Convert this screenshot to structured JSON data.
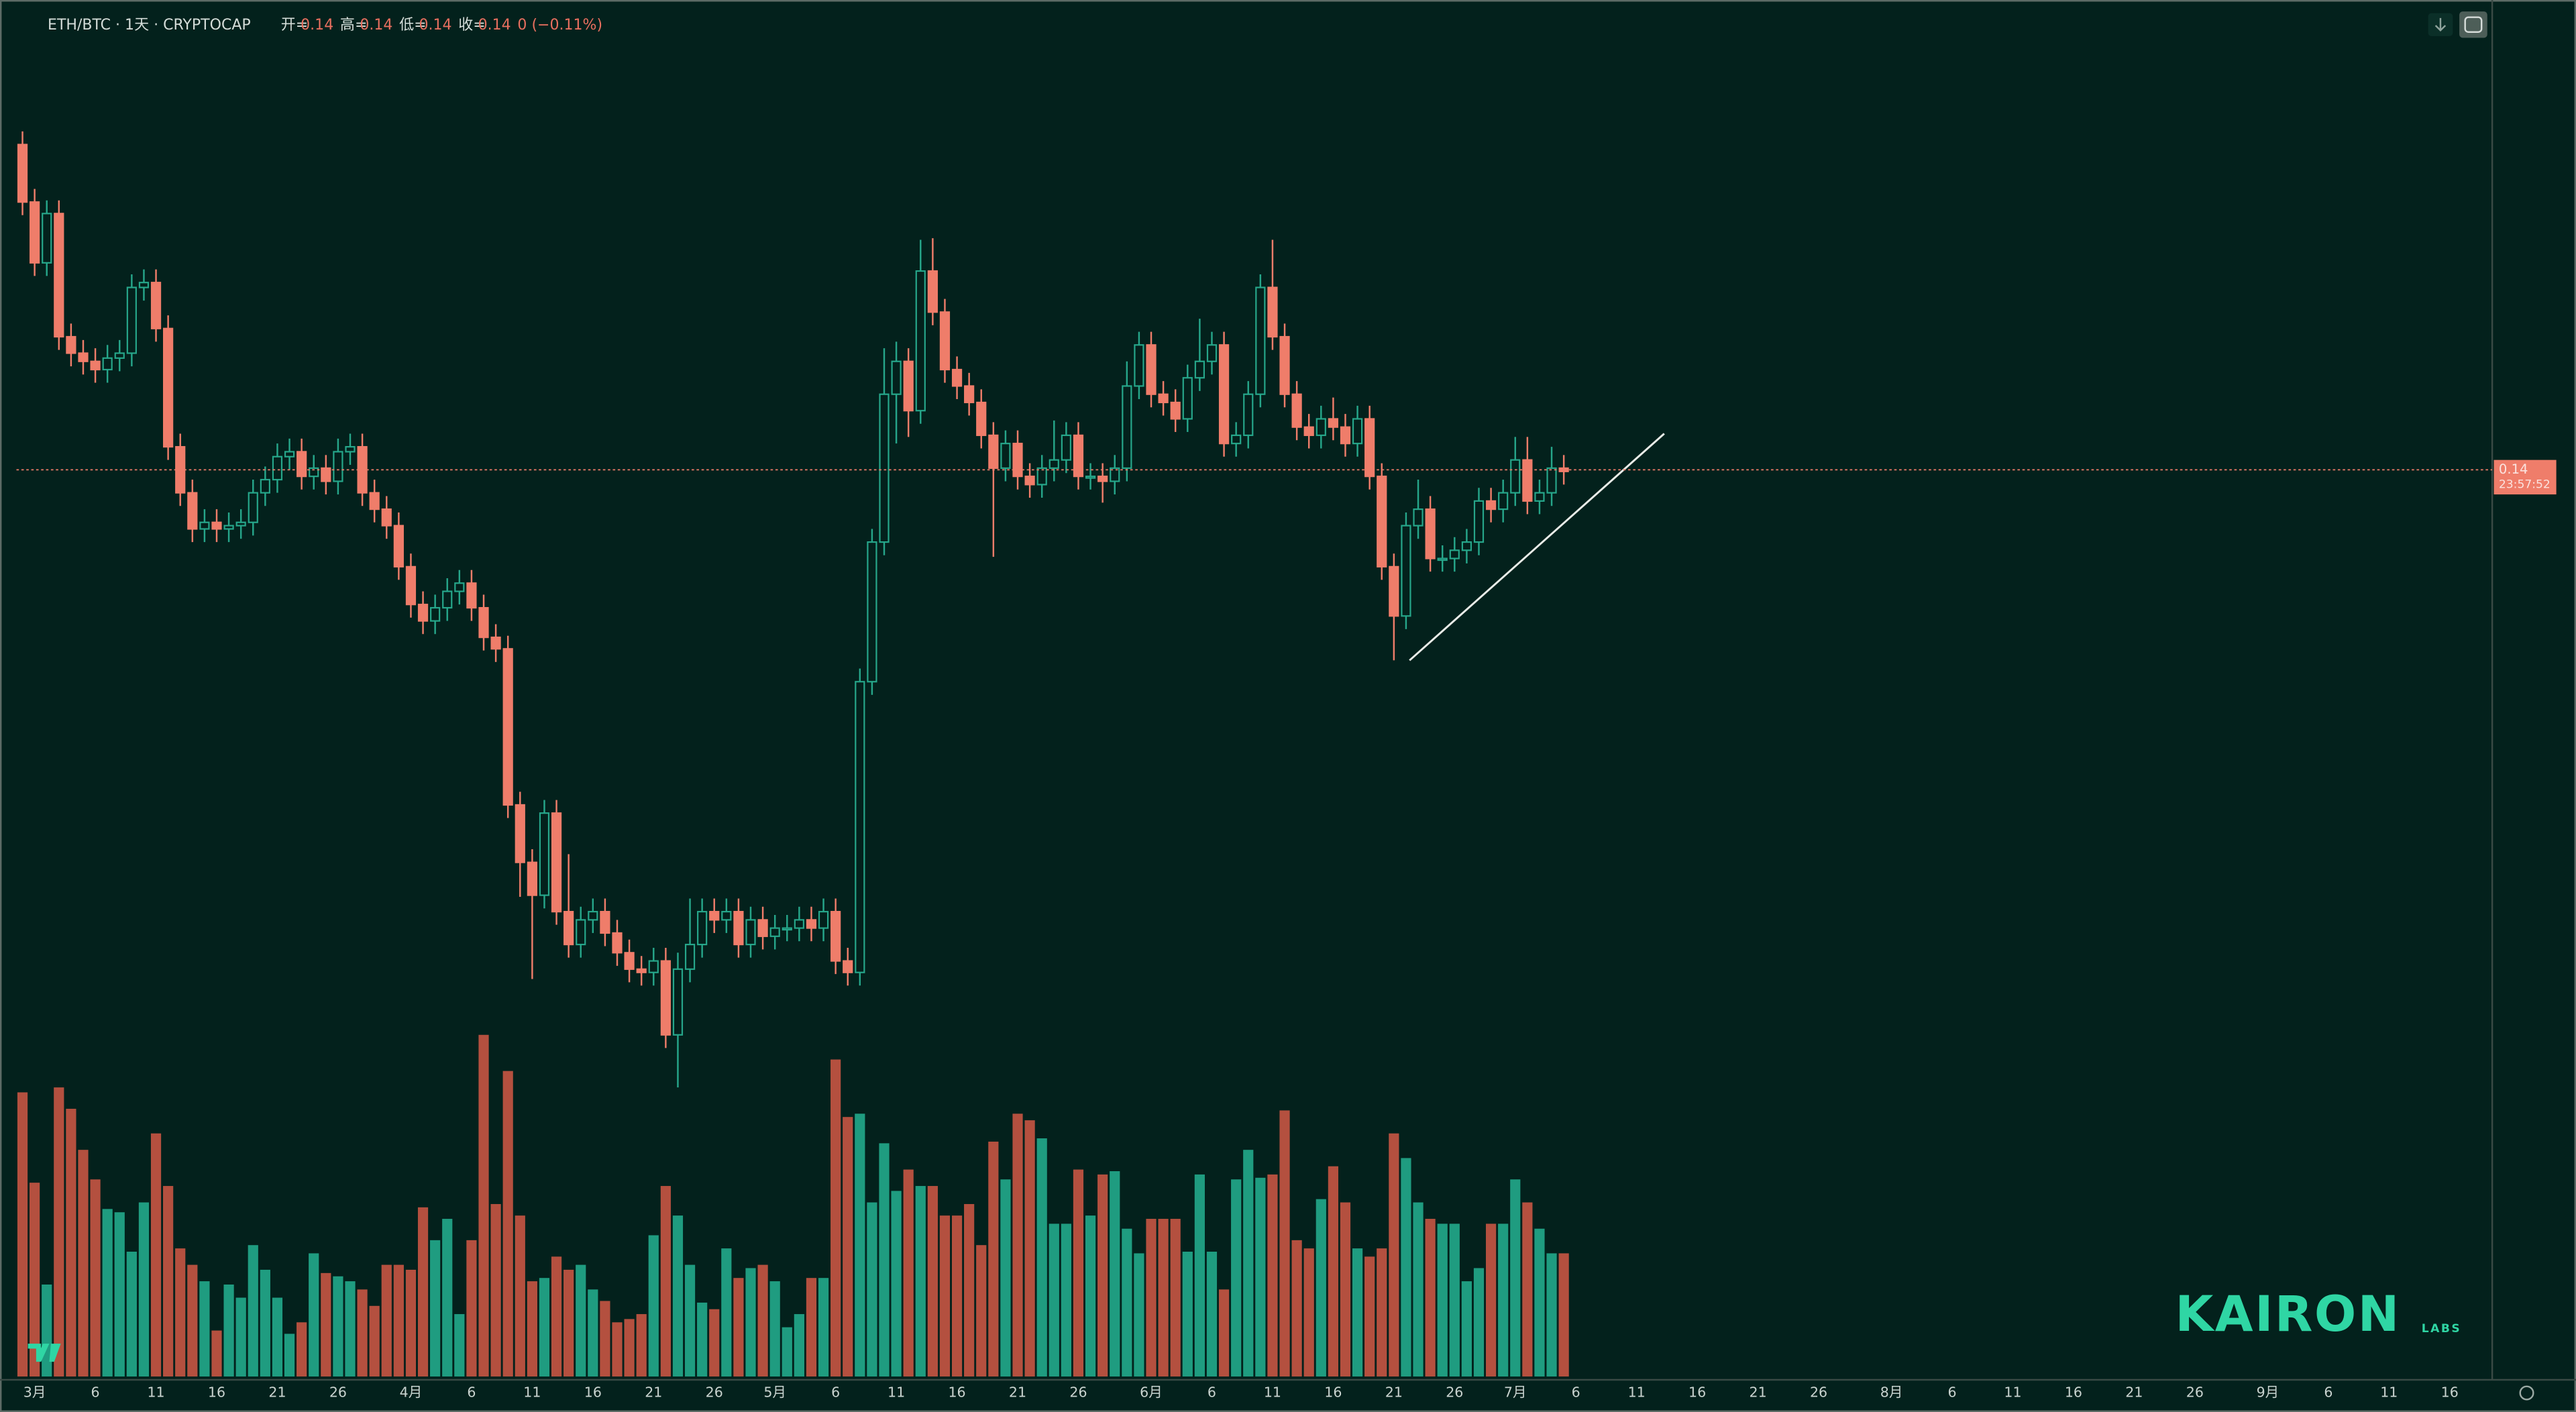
{
  "chart_data": {
    "type": "candlestick",
    "title": "ETH/BTC · 1天 · CRYPTOCAP",
    "ohlc_legend": [
      {
        "label": "开=",
        "value": 0.14
      },
      {
        "label": "高=",
        "value": 0.14
      },
      {
        "label": "低=",
        "value": 0.14
      },
      {
        "label": "收=",
        "value": 0.14
      }
    ],
    "change": "0 (−0.11%)",
    "price_label": {
      "value": 0.14,
      "label": "0.14"
    },
    "countdown": "23:57:52",
    "logo": "KAIRON",
    "logo_sub": "LABS",
    "up_color": "#26a68a",
    "down_color": "#ef7d6a",
    "volume_up_color": "#1f9c80",
    "volume_down_color": "#b4503f",
    "xlim": [
      -0.5,
      203.5
    ],
    "ylim": [
      0.0848,
      0.1681
    ],
    "volume_lim": [
      0,
      400
    ],
    "xticks": [
      {
        "value": 1,
        "label": "3月"
      },
      {
        "value": 6,
        "label": "6"
      },
      {
        "value": 11,
        "label": "11"
      },
      {
        "value": 16,
        "label": "16"
      },
      {
        "value": 21,
        "label": "21"
      },
      {
        "value": 26,
        "label": "26"
      },
      {
        "value": 32,
        "label": "4月"
      },
      {
        "value": 37,
        "label": "6"
      },
      {
        "value": 42,
        "label": "11"
      },
      {
        "value": 47,
        "label": "16"
      },
      {
        "value": 52,
        "label": "21"
      },
      {
        "value": 57,
        "label": "26"
      },
      {
        "value": 62,
        "label": "5月"
      },
      {
        "value": 67,
        "label": "6"
      },
      {
        "value": 72,
        "label": "11"
      },
      {
        "value": 77,
        "label": "16"
      },
      {
        "value": 82,
        "label": "21"
      },
      {
        "value": 87,
        "label": "26"
      },
      {
        "value": 93,
        "label": "6月"
      },
      {
        "value": 98,
        "label": "6"
      },
      {
        "value": 103,
        "label": "11"
      },
      {
        "value": 108,
        "label": "16"
      },
      {
        "value": 113,
        "label": "21"
      },
      {
        "value": 118,
        "label": "26"
      },
      {
        "value": 123,
        "label": "7月"
      },
      {
        "value": 128,
        "label": "6"
      },
      {
        "value": 133,
        "label": "11"
      },
      {
        "value": 138,
        "label": "16"
      },
      {
        "value": 143,
        "label": "21"
      },
      {
        "value": 148,
        "label": "26"
      },
      {
        "value": 154,
        "label": "8月"
      },
      {
        "value": 159,
        "label": "6"
      },
      {
        "value": 164,
        "label": "11"
      },
      {
        "value": 169,
        "label": "16"
      },
      {
        "value": 174,
        "label": "21"
      },
      {
        "value": 179,
        "label": "26"
      },
      {
        "value": 185,
        "label": "9月"
      },
      {
        "value": 190,
        "label": "6"
      },
      {
        "value": 195,
        "label": "11"
      },
      {
        "value": 200,
        "label": "16"
      }
    ],
    "grid": false,
    "open": [
      0.1598,
      0.1563,
      0.1526,
      0.1556,
      0.1481,
      0.1471,
      0.1466,
      0.1461,
      0.1468,
      0.1471,
      0.1511,
      0.1514,
      0.1486,
      0.1414,
      0.1386,
      0.1364,
      0.1368,
      0.1364,
      0.1366,
      0.1368,
      0.1386,
      0.1394,
      0.1408,
      0.1411,
      0.1396,
      0.1401,
      0.1393,
      0.1411,
      0.1414,
      0.1386,
      0.1376,
      0.1366,
      0.1341,
      0.1318,
      0.1308,
      0.1316,
      0.1326,
      0.1331,
      0.1316,
      0.1298,
      0.1291,
      0.1196,
      0.1161,
      0.1141,
      0.1191,
      0.1131,
      0.1111,
      0.1126,
      0.1131,
      0.1118,
      0.1106,
      0.1096,
      0.1094,
      0.1101,
      0.1056,
      0.1096,
      0.1111,
      0.1131,
      0.1126,
      0.1131,
      0.1111,
      0.1126,
      0.1116,
      0.1121,
      0.1121,
      0.1126,
      0.1121,
      0.1131,
      0.1101,
      0.1094,
      0.1271,
      0.1356,
      0.1446,
      0.1466,
      0.1436,
      0.1521,
      0.1496,
      0.1461,
      0.1451,
      0.1441,
      0.1421,
      0.1401,
      0.1416,
      0.1396,
      0.1391,
      0.1401,
      0.1406,
      0.1421,
      0.1396,
      0.1396,
      0.1393,
      0.1401,
      0.1451,
      0.1476,
      0.1446,
      0.1441,
      0.1431,
      0.1456,
      0.1466,
      0.1476,
      0.1416,
      0.1421,
      0.1446,
      0.1511,
      0.1481,
      0.1446,
      0.1426,
      0.1421,
      0.1431,
      0.1426,
      0.1416,
      0.1431,
      0.1396,
      0.1341,
      0.1311,
      0.1366,
      0.1376,
      0.1346,
      0.1346,
      0.1351,
      0.1356,
      0.1381,
      0.1376,
      0.1386,
      0.1406,
      0.1381,
      0.1386,
      0.1401
    ],
    "high": [
      0.1606,
      0.1571,
      0.1564,
      0.1564,
      0.1489,
      0.1479,
      0.1474,
      0.1476,
      0.1479,
      0.1519,
      0.1522,
      0.1522,
      0.1494,
      0.1422,
      0.1394,
      0.1376,
      0.1376,
      0.1374,
      0.1376,
      0.1394,
      0.1402,
      0.1416,
      0.1419,
      0.1419,
      0.1409,
      0.1409,
      0.1419,
      0.1422,
      0.1422,
      0.1394,
      0.1384,
      0.1374,
      0.1349,
      0.1326,
      0.1324,
      0.1334,
      0.1339,
      0.1339,
      0.1324,
      0.1306,
      0.1299,
      0.1204,
      0.1169,
      0.1199,
      0.1199,
      0.1166,
      0.1134,
      0.1139,
      0.1139,
      0.1126,
      0.1114,
      0.1104,
      0.1109,
      0.1109,
      0.1106,
      0.1139,
      0.1139,
      0.1139,
      0.1139,
      0.1139,
      0.1134,
      0.1134,
      0.1129,
      0.1129,
      0.1134,
      0.1134,
      0.1139,
      0.1139,
      0.1109,
      0.1279,
      0.1364,
      0.1474,
      0.1478,
      0.1474,
      0.154,
      0.1541,
      0.1504,
      0.1469,
      0.1459,
      0.1449,
      0.1429,
      0.1424,
      0.1424,
      0.1404,
      0.1409,
      0.143,
      0.1429,
      0.1429,
      0.1404,
      0.1404,
      0.1409,
      0.1466,
      0.1484,
      0.1484,
      0.1454,
      0.1449,
      0.1464,
      0.1492,
      0.1484,
      0.1484,
      0.1429,
      0.1454,
      0.1519,
      0.154,
      0.1489,
      0.1454,
      0.1434,
      0.1439,
      0.1444,
      0.1434,
      0.1439,
      0.1439,
      0.1404,
      0.1349,
      0.1374,
      0.1394,
      0.1384,
      0.1354,
      0.1359,
      0.1364,
      0.1389,
      0.1389,
      0.1394,
      0.142,
      0.142,
      0.1394,
      0.1414,
      0.1409
    ],
    "low": [
      0.1555,
      0.1518,
      0.1518,
      0.1473,
      0.1463,
      0.1458,
      0.1453,
      0.1453,
      0.146,
      0.1463,
      0.1503,
      0.1478,
      0.1406,
      0.1378,
      0.1356,
      0.1356,
      0.1356,
      0.1356,
      0.1358,
      0.136,
      0.1378,
      0.1386,
      0.14,
      0.1388,
      0.1388,
      0.1385,
      0.1385,
      0.1403,
      0.1378,
      0.1368,
      0.1358,
      0.1333,
      0.131,
      0.13,
      0.13,
      0.1308,
      0.1318,
      0.1308,
      0.129,
      0.1283,
      0.1188,
      0.114,
      0.109,
      0.1133,
      0.1123,
      0.1103,
      0.1103,
      0.1118,
      0.111,
      0.1098,
      0.1088,
      0.1086,
      0.1086,
      0.1048,
      0.1024,
      0.1088,
      0.1103,
      0.1118,
      0.1118,
      0.1103,
      0.1103,
      0.1108,
      0.1108,
      0.1113,
      0.1113,
      0.1113,
      0.1113,
      0.1093,
      0.1086,
      0.1086,
      0.1263,
      0.1348,
      0.1416,
      0.142,
      0.1428,
      0.1488,
      0.1453,
      0.1443,
      0.1433,
      0.1413,
      0.1347,
      0.1393,
      0.1388,
      0.1383,
      0.1383,
      0.1393,
      0.1398,
      0.1388,
      0.1388,
      0.138,
      0.1385,
      0.1393,
      0.1443,
      0.1438,
      0.1433,
      0.1423,
      0.1423,
      0.1448,
      0.1458,
      0.1408,
      0.1408,
      0.1413,
      0.1438,
      0.1473,
      0.1438,
      0.1418,
      0.1413,
      0.1413,
      0.1418,
      0.1408,
      0.1408,
      0.1388,
      0.1333,
      0.1284,
      0.1303,
      0.1358,
      0.1338,
      0.1338,
      0.1338,
      0.1343,
      0.1348,
      0.1368,
      0.1368,
      0.1378,
      0.1373,
      0.1373,
      0.1378,
      0.1391
    ],
    "close": [
      0.1563,
      0.1526,
      0.1556,
      0.1481,
      0.1471,
      0.1466,
      0.1461,
      0.1468,
      0.1471,
      0.1511,
      0.1514,
      0.1486,
      0.1414,
      0.1386,
      0.1364,
      0.1368,
      0.1364,
      0.1366,
      0.1368,
      0.1386,
      0.1394,
      0.1408,
      0.1411,
      0.1396,
      0.1401,
      0.1393,
      0.1411,
      0.1414,
      0.1386,
      0.1376,
      0.1366,
      0.1341,
      0.1318,
      0.1308,
      0.1316,
      0.1326,
      0.1331,
      0.1316,
      0.1298,
      0.1291,
      0.1196,
      0.1161,
      0.1141,
      0.1191,
      0.1131,
      0.1111,
      0.1126,
      0.1131,
      0.1118,
      0.1106,
      0.1096,
      0.1094,
      0.1101,
      0.1056,
      0.1096,
      0.1111,
      0.1131,
      0.1126,
      0.1131,
      0.1111,
      0.1126,
      0.1116,
      0.1121,
      0.1121,
      0.1126,
      0.1121,
      0.1131,
      0.1101,
      0.1094,
      0.1271,
      0.1356,
      0.1446,
      0.1466,
      0.1436,
      0.1521,
      0.1496,
      0.1461,
      0.1451,
      0.1441,
      0.1421,
      0.1401,
      0.1416,
      0.1396,
      0.1391,
      0.1401,
      0.1406,
      0.1421,
      0.1396,
      0.1396,
      0.1393,
      0.1401,
      0.1451,
      0.1476,
      0.1446,
      0.1441,
      0.1431,
      0.1456,
      0.1466,
      0.1476,
      0.1416,
      0.1421,
      0.1446,
      0.1511,
      0.1481,
      0.1446,
      0.1426,
      0.1421,
      0.1431,
      0.1426,
      0.1416,
      0.1431,
      0.1396,
      0.1341,
      0.1311,
      0.1366,
      0.1376,
      0.1346,
      0.1346,
      0.1351,
      0.1356,
      0.1381,
      0.1376,
      0.1386,
      0.1406,
      0.1381,
      0.1386,
      0.1401,
      0.1399
    ],
    "volume": [
      173,
      118,
      56,
      176,
      163,
      138,
      120,
      102,
      100,
      76,
      106,
      148,
      116,
      78,
      68,
      58,
      28,
      56,
      48,
      80,
      65,
      48,
      26,
      33,
      75,
      63,
      61,
      58,
      53,
      43,
      68,
      68,
      65,
      103,
      83,
      96,
      38,
      83,
      208,
      105,
      186,
      98,
      58,
      60,
      73,
      65,
      68,
      53,
      46,
      33,
      35,
      38,
      86,
      116,
      98,
      68,
      45,
      41,
      78,
      60,
      66,
      68,
      58,
      30,
      38,
      60,
      60,
      193,
      158,
      160,
      106,
      142,
      113,
      126,
      116,
      116,
      98,
      98,
      105,
      80,
      143,
      120,
      160,
      156,
      145,
      93,
      93,
      126,
      98,
      123,
      125,
      90,
      75,
      96,
      96,
      96,
      76,
      123,
      76,
      53,
      120,
      138,
      121,
      123,
      162,
      83,
      78,
      108,
      128,
      106,
      78,
      73,
      78,
      148,
      133,
      106,
      96,
      93,
      93,
      58,
      66,
      93,
      93,
      120,
      106,
      90,
      75,
      75
    ]
  }
}
